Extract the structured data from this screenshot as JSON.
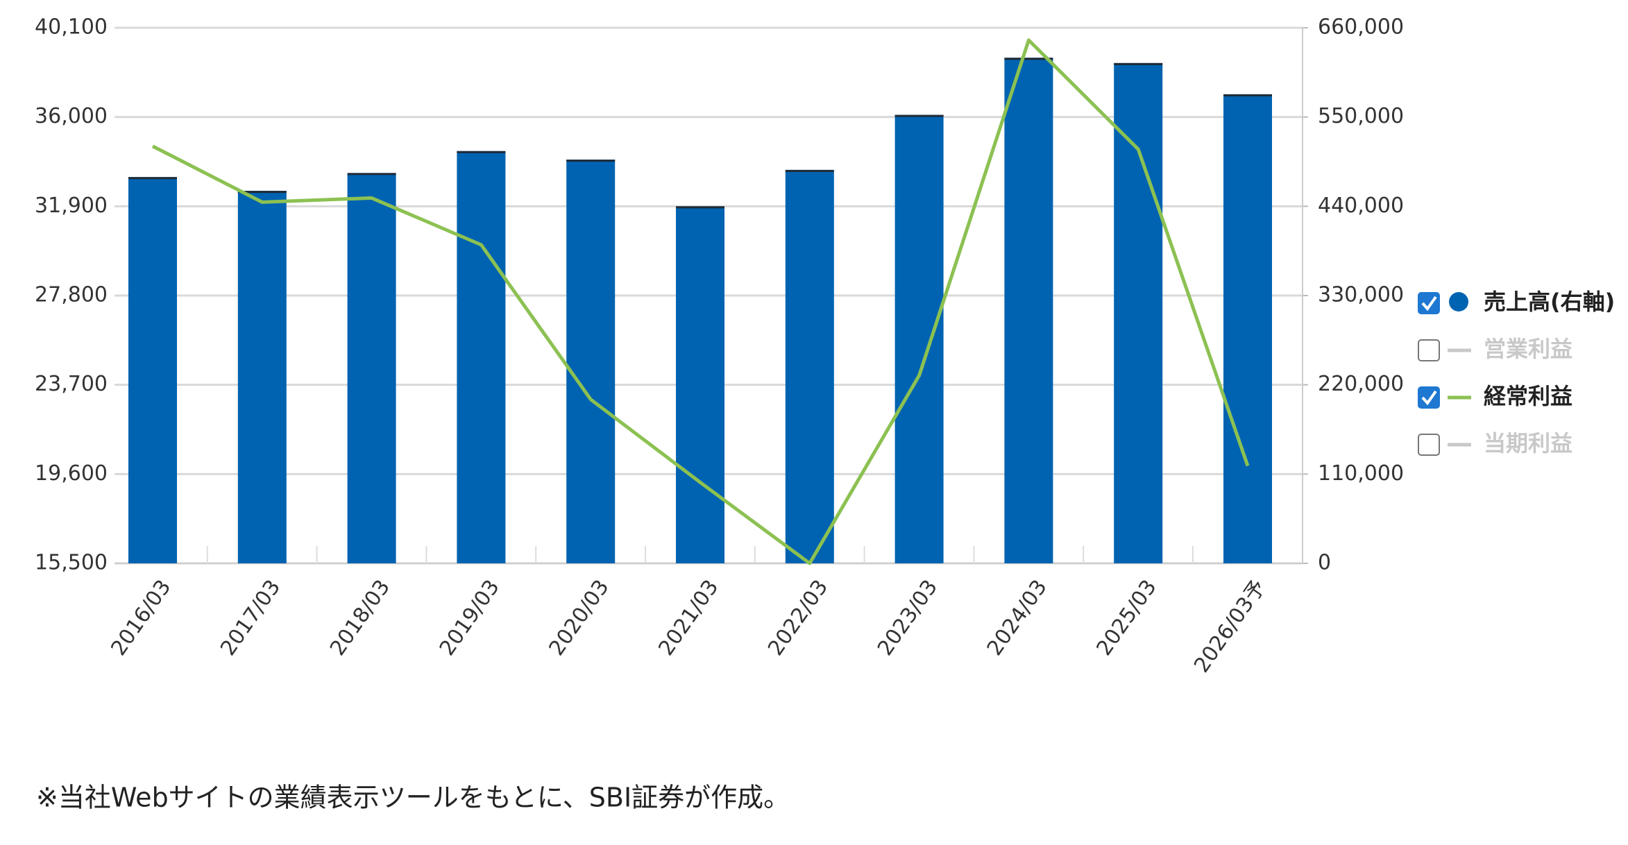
{
  "chart_data": {
    "type": "bar-line",
    "categories": [
      "2016/03",
      "2017/03",
      "2018/03",
      "2019/03",
      "2020/03",
      "2021/03",
      "2022/03",
      "2023/03",
      "2024/03",
      "2025/03",
      "2026/03予"
    ],
    "series": [
      {
        "name": "売上高(右軸)",
        "color": "#0063b1",
        "type": "bar",
        "axis": "y2",
        "visible": true,
        "values": [
          476000,
          459000,
          481000,
          508000,
          497500,
          440000,
          484800,
          552600,
          623000,
          616500,
          578000
        ]
      },
      {
        "name": "営業利益",
        "color": "#c8c8c8",
        "type": "line",
        "visible": false
      },
      {
        "name": "経常利益",
        "color": "#8cc152",
        "type": "line",
        "axis": "y",
        "visible": true,
        "values": [
          34660,
          32090,
          32280,
          30130,
          23030,
          19220,
          15500,
          24130,
          39530,
          34520,
          19980
        ]
      },
      {
        "name": "当期利益",
        "color": "#c8c8c8",
        "type": "line",
        "visible": false
      }
    ],
    "ylim": [
      15500,
      40100
    ],
    "yticks": [
      {
        "value": 15500,
        "label": "15,500"
      },
      {
        "value": 19600,
        "label": "19,600"
      },
      {
        "value": 23700,
        "label": "23,700"
      },
      {
        "value": 27800,
        "label": "27,800"
      },
      {
        "value": 31900,
        "label": "31,900"
      },
      {
        "value": 36000,
        "label": "36,000"
      },
      {
        "value": 40100,
        "label": "40,100"
      }
    ],
    "y2lim": [
      0,
      660000
    ],
    "y2ticks": [
      0,
      {
        "value": 110000,
        "label": "110,000"
      },
      {
        "value": 220000,
        "label": "220,000"
      },
      {
        "value": 330000,
        "label": "330,000"
      },
      {
        "value": 440000,
        "label": "440,000"
      },
      {
        "value": 550000,
        "label": "550,000"
      },
      {
        "value": 660000,
        "label": "660,000"
      }
    ],
    "grid": true,
    "legend": "right"
  },
  "note": "※当社Webサイトの業績表示ツールをもとに、SBI証券が作成。"
}
